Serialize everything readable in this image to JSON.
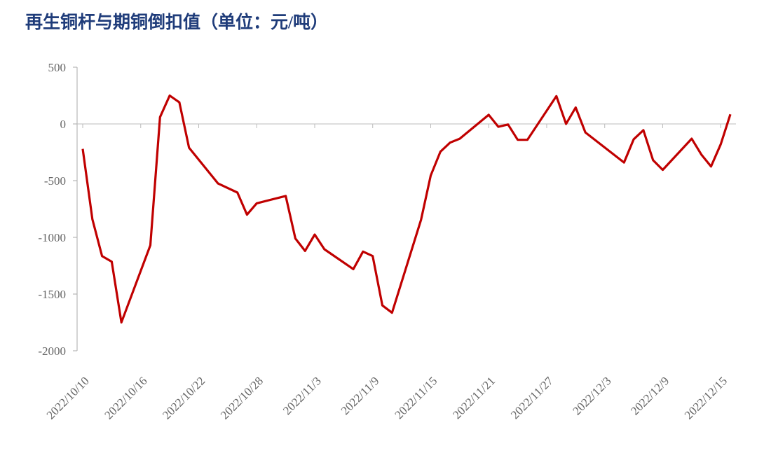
{
  "chart_data": {
    "type": "line",
    "title": "再生铜杆与期铜倒扣值（单位：元/吨）",
    "x": [
      "2022/10/10",
      "2022/10/11",
      "2022/10/12",
      "2022/10/13",
      "2022/10/14",
      "2022/10/17",
      "2022/10/18",
      "2022/10/19",
      "2022/10/20",
      "2022/10/21",
      "2022/10/24",
      "2022/10/26",
      "2022/10/27",
      "2022/10/28",
      "2022/10/31",
      "2022/11/1",
      "2022/11/2",
      "2022/11/3",
      "2022/11/4",
      "2022/11/7",
      "2022/11/8",
      "2022/11/9",
      "2022/11/10",
      "2022/11/11",
      "2022/11/14",
      "2022/11/15",
      "2022/11/16",
      "2022/11/17",
      "2022/11/18",
      "2022/11/21",
      "2022/11/22",
      "2022/11/23",
      "2022/11/24",
      "2022/11/25",
      "2022/11/28",
      "2022/11/29",
      "2022/11/30",
      "2022/12/1",
      "2022/12/5",
      "2022/12/6",
      "2022/12/7",
      "2022/12/8",
      "2022/12/9",
      "2022/12/12",
      "2022/12/13",
      "2022/12/14",
      "2022/12/15",
      "2022/12/16"
    ],
    "series": [
      {
        "name": "倒扣值",
        "color": "#c00000",
        "values": [
          -220,
          -840,
          -1165,
          -1215,
          -1750,
          -1070,
          60,
          250,
          190,
          -210,
          -525,
          -605,
          -800,
          -700,
          -635,
          -1010,
          -1120,
          -975,
          -1105,
          -1280,
          -1125,
          -1165,
          -1600,
          -1665,
          -845,
          -455,
          -245,
          -165,
          -130,
          80,
          -25,
          -5,
          -140,
          -140,
          245,
          0,
          145,
          -75,
          -340,
          -135,
          -55,
          -320,
          -405,
          -130,
          -270,
          -375,
          -180,
          85
        ]
      }
    ],
    "xlim": [
      "2022/10/10",
      "2022/12/16"
    ],
    "xticks": [
      "2022/10/10",
      "2022/10/16",
      "2022/10/22",
      "2022/10/28",
      "2022/11/3",
      "2022/11/9",
      "2022/11/15",
      "2022/11/21",
      "2022/11/27",
      "2022/12/3",
      "2022/12/9",
      "2022/12/15"
    ],
    "ylim": [
      -2000,
      500
    ],
    "yticks": [
      -2000,
      -1500,
      -1000,
      -500,
      0,
      500
    ],
    "grid": false
  }
}
